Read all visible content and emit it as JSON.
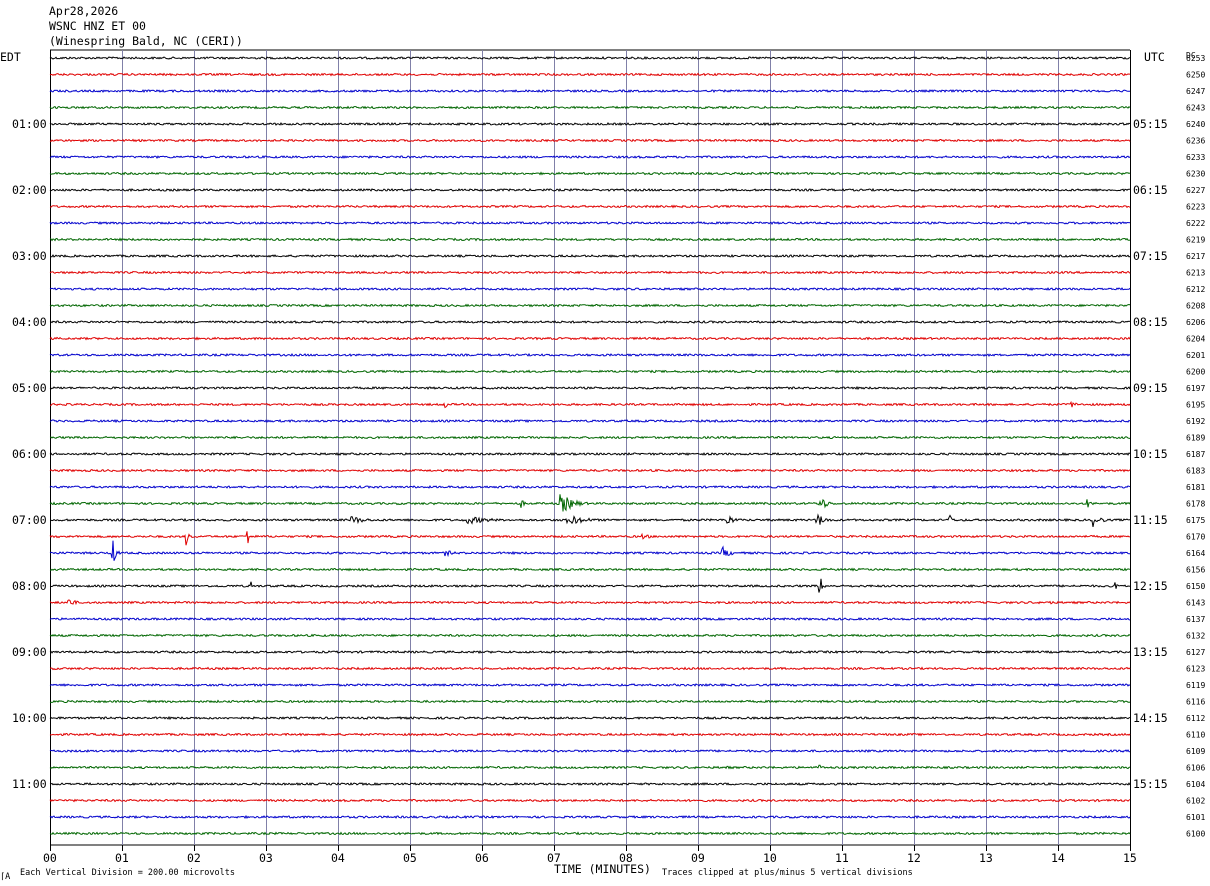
{
  "header": {
    "date": "Apr28,2026",
    "station": "WSNC HNZ ET 00",
    "location": "(Winespring Bald, NC (CERI))"
  },
  "left_timezone": "EDT",
  "right_timezone": "UTC",
  "dc_label": "DC",
  "footer": {
    "scale_note": "Each Vertical Division =  200.00 microvolts",
    "clip_note": "Traces clipped at plus/minus 5 vertical divisions",
    "corner_mark": "⌈A"
  },
  "chart_data": {
    "type": "line",
    "title": "WSNC HNZ ET 00",
    "xlabel": "TIME (MINUTES)",
    "ylabel": "",
    "xlim": [
      0,
      15
    ],
    "x_ticks": [
      "00",
      "01",
      "02",
      "03",
      "04",
      "05",
      "06",
      "07",
      "08",
      "09",
      "10",
      "11",
      "12",
      "13",
      "14",
      "15"
    ],
    "trace_count": 48,
    "trace_colors": [
      "#000000",
      "#e00000",
      "#0000cc",
      "#006600"
    ],
    "left_time_labels": [
      {
        "trace": 4,
        "label": "01:00"
      },
      {
        "trace": 8,
        "label": "02:00"
      },
      {
        "trace": 12,
        "label": "03:00"
      },
      {
        "trace": 16,
        "label": "04:00"
      },
      {
        "trace": 20,
        "label": "05:00"
      },
      {
        "trace": 24,
        "label": "06:00"
      },
      {
        "trace": 28,
        "label": "07:00"
      },
      {
        "trace": 32,
        "label": "08:00"
      },
      {
        "trace": 36,
        "label": "09:00"
      },
      {
        "trace": 40,
        "label": "10:00"
      },
      {
        "trace": 44,
        "label": "11:00"
      }
    ],
    "right_time_labels": [
      {
        "trace": 4,
        "label": "05:15"
      },
      {
        "trace": 8,
        "label": "06:15"
      },
      {
        "trace": 12,
        "label": "07:15"
      },
      {
        "trace": 16,
        "label": "08:15"
      },
      {
        "trace": 20,
        "label": "09:15"
      },
      {
        "trace": 24,
        "label": "10:15"
      },
      {
        "trace": 28,
        "label": "11:15"
      },
      {
        "trace": 32,
        "label": "12:15"
      },
      {
        "trace": 36,
        "label": "13:15"
      },
      {
        "trace": 40,
        "label": "14:15"
      },
      {
        "trace": 44,
        "label": "15:15"
      }
    ],
    "dc_offsets": [
      "6253",
      "6250",
      "6247",
      "6243",
      "6240",
      "6236",
      "6233",
      "6230",
      "6227",
      "6223",
      "6222",
      "6219",
      "6217",
      "6213",
      "6212",
      "6208",
      "6206",
      "6204",
      "6201",
      "6200",
      "6197",
      "6195",
      "6192",
      "6189",
      "6187",
      "6183",
      "6181",
      "6178",
      "6175",
      "6170",
      "6164",
      "6156",
      "6150",
      "6143",
      "6137",
      "6132",
      "6127",
      "6123",
      "6119",
      "6116",
      "6112",
      "6110",
      "6109",
      "6106",
      "6104",
      "6102",
      "6101",
      "6100"
    ],
    "noise_amplitude": 1.0,
    "events": [
      {
        "trace": 21,
        "minute": 5.5,
        "amplitude": 4,
        "duration": 0.08
      },
      {
        "trace": 21,
        "minute": 14.2,
        "amplitude": 3,
        "duration": 0.3
      },
      {
        "trace": 27,
        "minute": 6.55,
        "amplitude": 5,
        "duration": 0.1
      },
      {
        "trace": 27,
        "minute": 7.1,
        "amplitude": 10,
        "duration": 0.5
      },
      {
        "trace": 27,
        "minute": 10.7,
        "amplitude": 7,
        "duration": 0.3
      },
      {
        "trace": 27,
        "minute": 14.4,
        "amplitude": 5,
        "duration": 0.2
      },
      {
        "trace": 28,
        "minute": 4.2,
        "amplitude": 4,
        "duration": 0.6
      },
      {
        "trace": 28,
        "minute": 5.8,
        "amplitude": 4,
        "duration": 1.0
      },
      {
        "trace": 28,
        "minute": 7.2,
        "amplitude": 5,
        "duration": 0.8
      },
      {
        "trace": 28,
        "minute": 9.4,
        "amplitude": 6,
        "duration": 0.3
      },
      {
        "trace": 28,
        "minute": 10.65,
        "amplitude": 8,
        "duration": 0.3
      },
      {
        "trace": 28,
        "minute": 12.5,
        "amplitude": 6,
        "duration": 0.1
      },
      {
        "trace": 28,
        "minute": 14.5,
        "amplitude": 7,
        "duration": 0.3
      },
      {
        "trace": 29,
        "minute": 1.9,
        "amplitude": 10,
        "duration": 0.1
      },
      {
        "trace": 29,
        "minute": 2.75,
        "amplitude": 9,
        "duration": 0.1
      },
      {
        "trace": 29,
        "minute": 8.2,
        "amplitude": 3,
        "duration": 0.5
      },
      {
        "trace": 30,
        "minute": 0.88,
        "amplitude": 13,
        "duration": 0.12
      },
      {
        "trace": 30,
        "minute": 5.5,
        "amplitude": 3,
        "duration": 0.4
      },
      {
        "trace": 30,
        "minute": 9.35,
        "amplitude": 6,
        "duration": 0.3
      },
      {
        "trace": 32,
        "minute": 2.8,
        "amplitude": 5,
        "duration": 0.05
      },
      {
        "trace": 32,
        "minute": 10.7,
        "amplitude": 10,
        "duration": 0.1
      },
      {
        "trace": 32,
        "minute": 14.8,
        "amplitude": 4,
        "duration": 0.1
      },
      {
        "trace": 33,
        "minute": 0.25,
        "amplitude": 5,
        "duration": 0.3
      },
      {
        "trace": 33,
        "minute": 13.9,
        "amplitude": 4,
        "duration": 0.05
      },
      {
        "trace": 43,
        "minute": 9.4,
        "amplitude": 3,
        "duration": 0.1
      },
      {
        "trace": 43,
        "minute": 10.7,
        "amplitude": 3,
        "duration": 0.05
      }
    ]
  }
}
